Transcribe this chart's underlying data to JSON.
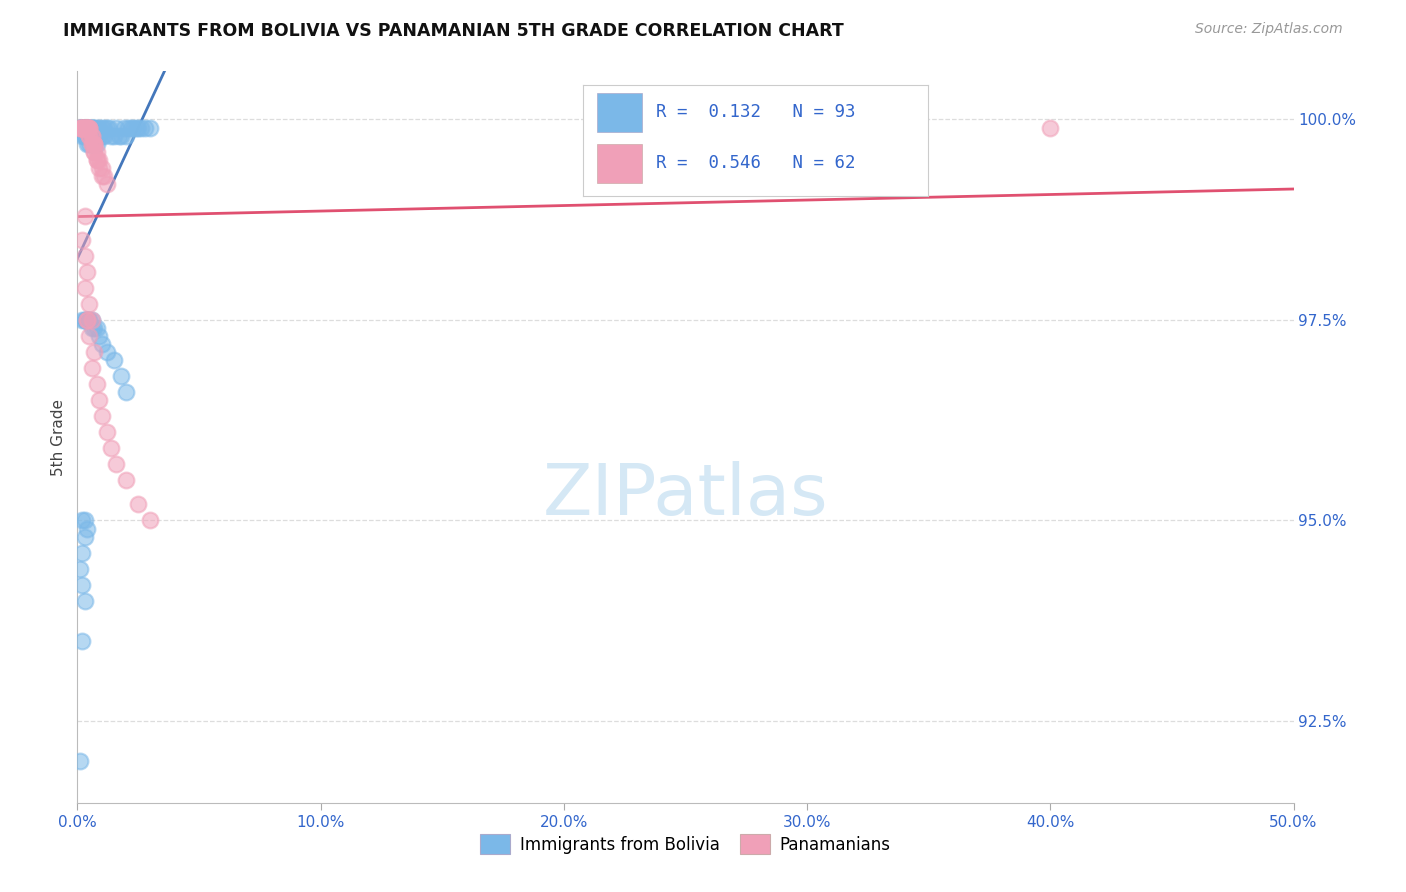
{
  "title": "IMMIGRANTS FROM BOLIVIA VS PANAMANIAN 5TH GRADE CORRELATION CHART",
  "source": "Source: ZipAtlas.com",
  "ylabel": "5th Grade",
  "xmin": 0.0,
  "xmax": 0.5,
  "ymin": 0.9148,
  "ymax": 1.006,
  "yticks": [
    1.0,
    0.975,
    0.95,
    0.925
  ],
  "yticklabels": [
    "100.0%",
    "97.5%",
    "95.0%",
    "92.5%"
  ],
  "xticks": [
    0.0,
    0.1,
    0.2,
    0.3,
    0.4,
    0.5
  ],
  "xticklabels": [
    "0.0%",
    "10.0%",
    "20.0%",
    "30.0%",
    "40.0%",
    "50.0%"
  ],
  "r1": 0.132,
  "n1": 93,
  "r2": 0.546,
  "n2": 62,
  "color_bolivia": "#7BB8E8",
  "color_panama": "#F0A0B8",
  "color_reg_bolivia": "#4477BB",
  "color_reg_panama": "#E05070",
  "color_grid": "#DDDDDD",
  "background": "#FFFFFF",
  "legend_color_text": "#3366CC",
  "watermark_color": "#D5E8F5",
  "bolivia_x": [
    0.001,
    0.001,
    0.001,
    0.002,
    0.002,
    0.002,
    0.002,
    0.002,
    0.002,
    0.003,
    0.003,
    0.003,
    0.003,
    0.003,
    0.003,
    0.003,
    0.003,
    0.003,
    0.003,
    0.004,
    0.004,
    0.004,
    0.004,
    0.004,
    0.004,
    0.004,
    0.005,
    0.005,
    0.005,
    0.005,
    0.005,
    0.005,
    0.006,
    0.006,
    0.006,
    0.006,
    0.007,
    0.007,
    0.007,
    0.007,
    0.008,
    0.008,
    0.008,
    0.009,
    0.009,
    0.01,
    0.01,
    0.011,
    0.011,
    0.012,
    0.013,
    0.014,
    0.015,
    0.016,
    0.017,
    0.018,
    0.019,
    0.02,
    0.021,
    0.022,
    0.023,
    0.024,
    0.025,
    0.026,
    0.028,
    0.03,
    0.002,
    0.003,
    0.003,
    0.004,
    0.004,
    0.005,
    0.005,
    0.006,
    0.006,
    0.007,
    0.008,
    0.009,
    0.01,
    0.012,
    0.015,
    0.018,
    0.02,
    0.002,
    0.003,
    0.004,
    0.003,
    0.002,
    0.001,
    0.002,
    0.003,
    0.002,
    0.001
  ],
  "bolivia_y": [
    0.999,
    0.999,
    0.999,
    0.999,
    0.999,
    0.999,
    0.999,
    0.999,
    0.998,
    0.999,
    0.999,
    0.999,
    0.999,
    0.999,
    0.999,
    0.999,
    0.998,
    0.998,
    0.998,
    0.999,
    0.999,
    0.999,
    0.999,
    0.998,
    0.998,
    0.997,
    0.999,
    0.999,
    0.999,
    0.998,
    0.998,
    0.997,
    0.999,
    0.999,
    0.998,
    0.997,
    0.999,
    0.999,
    0.998,
    0.997,
    0.999,
    0.998,
    0.997,
    0.999,
    0.998,
    0.999,
    0.998,
    0.999,
    0.998,
    0.999,
    0.999,
    0.998,
    0.998,
    0.999,
    0.998,
    0.998,
    0.999,
    0.998,
    0.999,
    0.999,
    0.999,
    0.999,
    0.999,
    0.999,
    0.999,
    0.999,
    0.975,
    0.975,
    0.975,
    0.975,
    0.975,
    0.975,
    0.975,
    0.975,
    0.974,
    0.974,
    0.974,
    0.973,
    0.972,
    0.971,
    0.97,
    0.968,
    0.966,
    0.95,
    0.95,
    0.949,
    0.948,
    0.946,
    0.944,
    0.942,
    0.94,
    0.935,
    0.92
  ],
  "panama_x": [
    0.001,
    0.001,
    0.002,
    0.002,
    0.002,
    0.002,
    0.002,
    0.003,
    0.003,
    0.003,
    0.003,
    0.003,
    0.004,
    0.004,
    0.004,
    0.004,
    0.004,
    0.005,
    0.005,
    0.005,
    0.005,
    0.005,
    0.006,
    0.006,
    0.006,
    0.006,
    0.007,
    0.007,
    0.007,
    0.007,
    0.007,
    0.008,
    0.008,
    0.008,
    0.009,
    0.009,
    0.01,
    0.01,
    0.011,
    0.012,
    0.002,
    0.003,
    0.004,
    0.003,
    0.005,
    0.004,
    0.006,
    0.005,
    0.007,
    0.006,
    0.008,
    0.009,
    0.01,
    0.012,
    0.014,
    0.016,
    0.02,
    0.025,
    0.03,
    0.004,
    0.4,
    0.003
  ],
  "panama_y": [
    0.999,
    0.999,
    0.999,
    0.999,
    0.999,
    0.999,
    0.999,
    0.999,
    0.999,
    0.999,
    0.999,
    0.999,
    0.999,
    0.999,
    0.999,
    0.999,
    0.999,
    0.999,
    0.999,
    0.999,
    0.998,
    0.998,
    0.998,
    0.998,
    0.997,
    0.997,
    0.997,
    0.997,
    0.997,
    0.996,
    0.996,
    0.996,
    0.995,
    0.995,
    0.995,
    0.994,
    0.994,
    0.993,
    0.993,
    0.992,
    0.985,
    0.983,
    0.981,
    0.979,
    0.977,
    0.975,
    0.975,
    0.973,
    0.971,
    0.969,
    0.967,
    0.965,
    0.963,
    0.961,
    0.959,
    0.957,
    0.955,
    0.952,
    0.95,
    0.975,
    0.999,
    0.988
  ]
}
